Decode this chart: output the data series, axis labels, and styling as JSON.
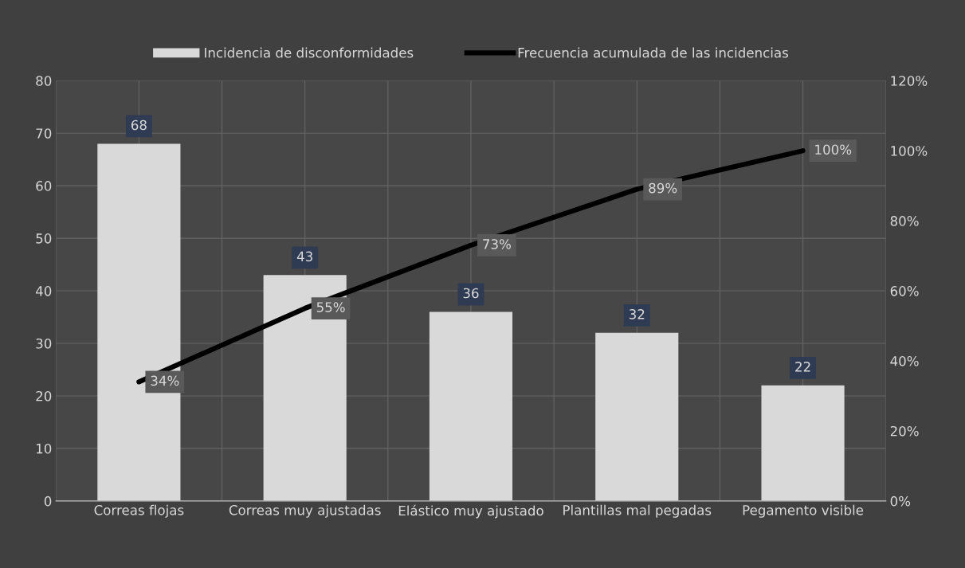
{
  "chart_data": {
    "type": "bar",
    "categories": [
      "Correas flojas",
      "Correas muy ajustadas",
      "Elástico muy ajustado",
      "Plantillas mal pegadas",
      "Pegamento visible"
    ],
    "series": [
      {
        "name": "Incidencia de disconformidades",
        "color": "#d9d9d9",
        "values": [
          68,
          43,
          36,
          32,
          22
        ]
      },
      {
        "name": "Frecuencia acumulada de las incidencias",
        "type": "line",
        "axis": "y2",
        "color": "#000000",
        "values": [
          34,
          55,
          73,
          89,
          100
        ],
        "value_labels": [
          "34%",
          "55%",
          "73%",
          "89%",
          "100%"
        ]
      }
    ],
    "data_labels": true,
    "ylim": [
      0,
      80
    ],
    "yticks": [
      0,
      10,
      20,
      30,
      40,
      50,
      60,
      70,
      80
    ],
    "y2lim": [
      0,
      120
    ],
    "y2ticks": [
      {
        "value": 0,
        "label": "0%"
      },
      {
        "value": 20,
        "label": "20%"
      },
      {
        "value": 40,
        "label": "40%"
      },
      {
        "value": 60,
        "label": "60%"
      },
      {
        "value": 80,
        "label": "80%"
      },
      {
        "value": 100,
        "label": "100%"
      },
      {
        "value": 120,
        "label": "120%"
      }
    ],
    "grid": true,
    "legend": "top",
    "marker": "none",
    "line_style": "solid"
  }
}
